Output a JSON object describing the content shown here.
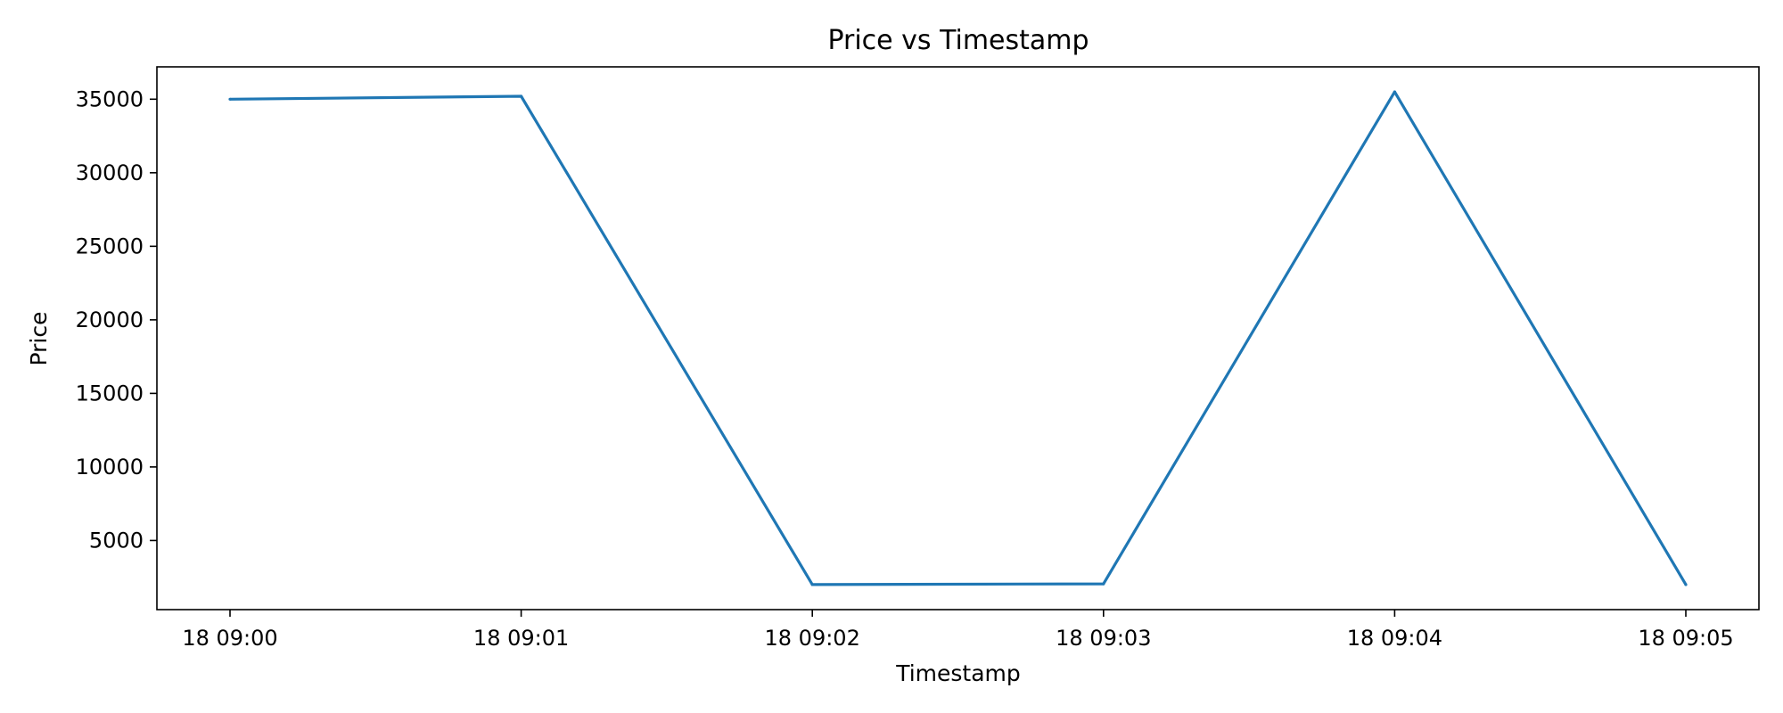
{
  "chart_data": {
    "type": "line",
    "title": "Price vs Timestamp",
    "xlabel": "Timestamp",
    "ylabel": "Price",
    "x": [
      "18 09:00",
      "18 09:01",
      "18 09:02",
      "18 09:03",
      "18 09:04",
      "18 09:05"
    ],
    "series": [
      {
        "values": [
          35000,
          35200,
          2000,
          2050,
          35500,
          2000
        ],
        "color": "#1f77b4"
      }
    ],
    "ylim": [
      300,
      37200
    ],
    "yticks": [
      5000,
      10000,
      15000,
      20000,
      25000,
      30000,
      35000
    ],
    "ytick_labels": [
      "5000",
      "10000",
      "15000",
      "20000",
      "25000",
      "30000",
      "35000"
    ],
    "xtick_labels": [
      "18 09:00",
      "18 09:01",
      "18 09:02",
      "18 09:03",
      "18 09:04",
      "18 09:05"
    ],
    "grid": false,
    "legend": false
  }
}
